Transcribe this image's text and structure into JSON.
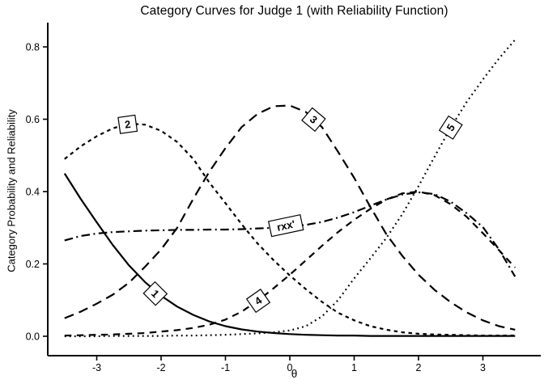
{
  "chart_data": {
    "type": "line",
    "title": "Category Curves for Judge 1 (with Reliability Function)",
    "xlabel": "θ",
    "ylabel": "Category  Probability and Reliability",
    "xlim": [
      -3.76,
      3.9
    ],
    "ylim": [
      -0.055,
      0.855
    ],
    "grid": false,
    "background": "#ffffff",
    "line_color": "#000000",
    "x_ticks": [
      -3,
      -2,
      -1,
      0,
      1,
      2,
      3
    ],
    "x_tick_labels": [
      "-3",
      "-2",
      "-1",
      "0",
      "1",
      "2",
      "3"
    ],
    "y_ticks": [
      0.0,
      0.2,
      0.4,
      0.6,
      0.8
    ],
    "y_tick_labels": [
      "0.0",
      "0.2",
      "0.4",
      "0.6",
      "0.8"
    ],
    "x": [
      -3.5,
      -3.25,
      -3.0,
      -2.75,
      -2.5,
      -2.25,
      -2.0,
      -1.75,
      -1.5,
      -1.25,
      -1.0,
      -0.75,
      -0.5,
      -0.25,
      0.0,
      0.25,
      0.5,
      0.75,
      1.0,
      1.25,
      1.5,
      1.75,
      2.0,
      2.25,
      2.5,
      2.75,
      3.0,
      3.25,
      3.5
    ],
    "series": [
      {
        "name": "Category 1",
        "label": "1",
        "line_style": "solid",
        "values": [
          0.45,
          0.38,
          0.315,
          0.252,
          0.196,
          0.15,
          0.112,
          0.082,
          0.059,
          0.041,
          0.028,
          0.019,
          0.013,
          0.009,
          0.006,
          0.004,
          0.003,
          0.002,
          0.002,
          0.001,
          0.001,
          0.001,
          0.001,
          0.001,
          0.001,
          0.001,
          0.001,
          0.001,
          0.001
        ]
      },
      {
        "name": "Category 2",
        "label": "2",
        "line_style": "short-dash",
        "values": [
          0.49,
          0.525,
          0.553,
          0.575,
          0.588,
          0.585,
          0.568,
          0.537,
          0.49,
          0.425,
          0.368,
          0.31,
          0.256,
          0.21,
          0.168,
          0.13,
          0.095,
          0.065,
          0.044,
          0.028,
          0.018,
          0.011,
          0.007,
          0.005,
          0.004,
          0.003,
          0.002,
          0.002,
          0.002
        ]
      },
      {
        "name": "Category 3",
        "label": "3",
        "line_style": "long-dash",
        "values": [
          0.05,
          0.068,
          0.09,
          0.115,
          0.148,
          0.192,
          0.24,
          0.3,
          0.38,
          0.455,
          0.52,
          0.578,
          0.615,
          0.636,
          0.638,
          0.62,
          0.578,
          0.51,
          0.438,
          0.358,
          0.282,
          0.222,
          0.17,
          0.128,
          0.094,
          0.066,
          0.044,
          0.028,
          0.018
        ]
      },
      {
        "name": "Category 4",
        "label": "4",
        "line_style": "medium-dash",
        "values": [
          0.002,
          0.003,
          0.004,
          0.005,
          0.007,
          0.009,
          0.013,
          0.017,
          0.023,
          0.032,
          0.046,
          0.068,
          0.098,
          0.133,
          0.17,
          0.21,
          0.25,
          0.288,
          0.322,
          0.352,
          0.378,
          0.395,
          0.4,
          0.39,
          0.365,
          0.33,
          0.285,
          0.238,
          0.19
        ]
      },
      {
        "name": "Category 5",
        "label": "5",
        "line_style": "dot",
        "values": [
          0.0,
          0.0,
          0.0,
          0.001,
          0.001,
          0.001,
          0.001,
          0.002,
          0.002,
          0.003,
          0.004,
          0.006,
          0.008,
          0.011,
          0.016,
          0.028,
          0.055,
          0.1,
          0.16,
          0.215,
          0.272,
          0.338,
          0.415,
          0.497,
          0.577,
          0.648,
          0.71,
          0.768,
          0.82
        ]
      },
      {
        "name": "Reliability rxx'",
        "label": "rxx'",
        "line_style": "dash-dot",
        "values": [
          0.265,
          0.277,
          0.284,
          0.288,
          0.29,
          0.292,
          0.293,
          0.294,
          0.294,
          0.295,
          0.295,
          0.296,
          0.298,
          0.3,
          0.303,
          0.308,
          0.316,
          0.328,
          0.343,
          0.361,
          0.378,
          0.392,
          0.398,
          0.393,
          0.372,
          0.34,
          0.302,
          0.24,
          0.165
        ]
      }
    ],
    "curve_labels": [
      {
        "text": "1",
        "theta": -2.09,
        "p": 0.118,
        "rotation": 45
      },
      {
        "text": "2",
        "theta": -2.52,
        "p": 0.586,
        "rotation": -8
      },
      {
        "text": "3",
        "theta": 0.37,
        "p": 0.599,
        "rotation": 40
      },
      {
        "text": "4",
        "theta": -0.49,
        "p": 0.098,
        "rotation": -35
      },
      {
        "text": "5",
        "theta": 2.5,
        "p": 0.577,
        "rotation": -57
      },
      {
        "text": "rxx'",
        "theta": -0.06,
        "p": 0.306,
        "rotation": -12
      }
    ]
  }
}
